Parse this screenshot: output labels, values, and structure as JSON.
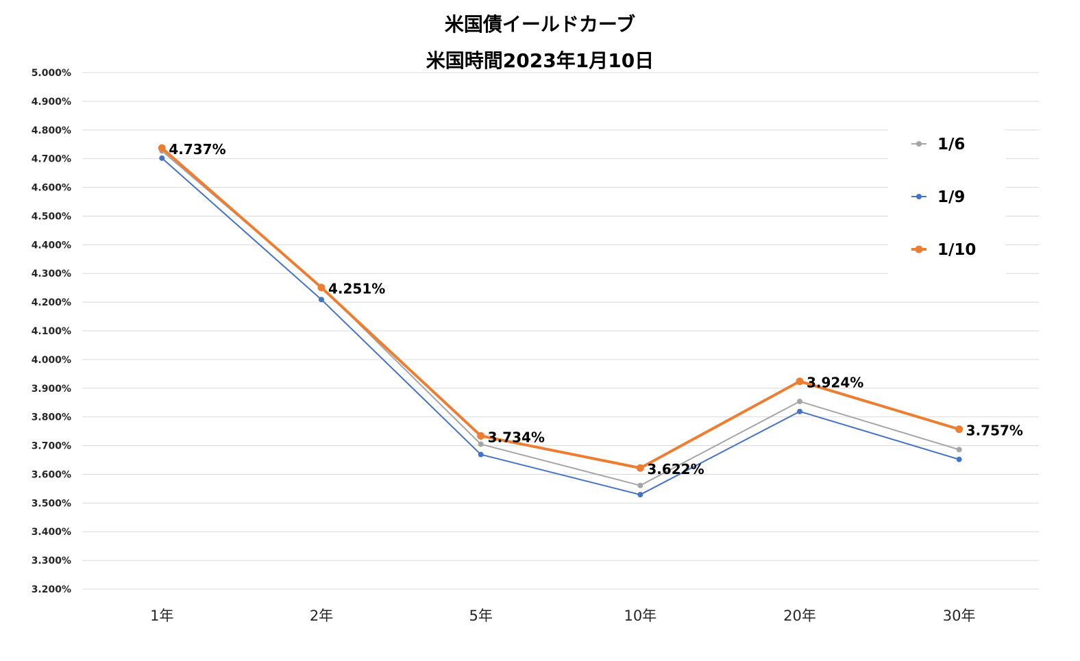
{
  "chart_data": {
    "type": "line",
    "title": "米国債イールドカーブ",
    "subtitle": "米国時間2023年1月10日",
    "xlabel": "",
    "ylabel": "",
    "categories": [
      "1年",
      "2年",
      "5年",
      "10年",
      "20年",
      "30年"
    ],
    "ylim": [
      3.2,
      5.0
    ],
    "ytick_step": 0.1,
    "ytick_labels": [
      "5.000%",
      "4.900%",
      "4.800%",
      "4.700%",
      "4.600%",
      "4.500%",
      "4.400%",
      "4.300%",
      "4.200%",
      "4.100%",
      "4.000%",
      "3.900%",
      "3.800%",
      "3.700%",
      "3.600%",
      "3.500%",
      "3.400%",
      "3.300%",
      "3.200%"
    ],
    "grid": true,
    "legend_position": "right",
    "series": [
      {
        "name": "1/6",
        "color": "#a5a5a5",
        "values": [
          4.727,
          4.253,
          3.705,
          3.561,
          3.854,
          3.686
        ],
        "data_labels": [
          "",
          "",
          "",
          "",
          "",
          ""
        ]
      },
      {
        "name": "1/9",
        "color": "#4472c4",
        "values": [
          4.702,
          4.209,
          3.669,
          3.529,
          3.819,
          3.652
        ],
        "data_labels": [
          "",
          "",
          "",
          "",
          "",
          ""
        ]
      },
      {
        "name": "1/10",
        "color": "#ed7d31",
        "values": [
          4.737,
          4.251,
          3.734,
          3.622,
          3.924,
          3.757
        ],
        "data_labels": [
          "4.737%",
          "4.251%",
          "3.734%",
          "3.622%",
          "3.924%",
          "3.757%"
        ]
      }
    ]
  }
}
